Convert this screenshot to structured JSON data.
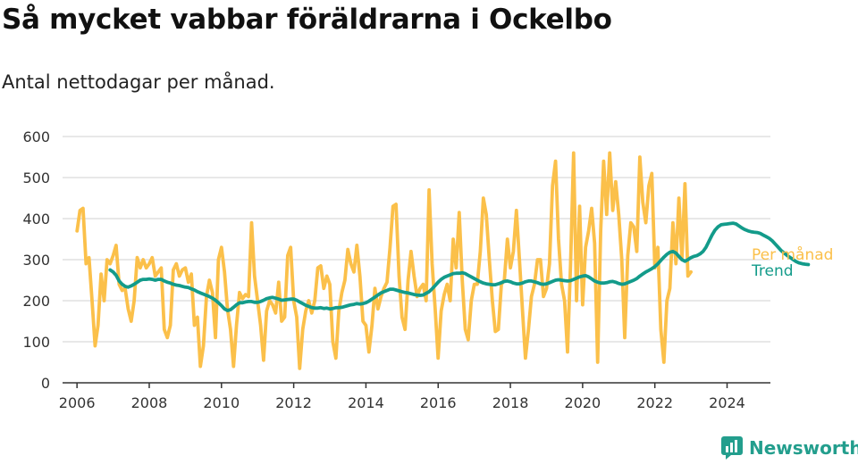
{
  "title": "Så mycket vabbar föräldrarna i Ockelbo",
  "subtitle": "Antal nettodagar per månad.",
  "brand": "Newsworthy",
  "colors": {
    "monthly": "#fbc04a",
    "trend": "#139b8a",
    "grid": "#d9d9d9",
    "axis": "#333333",
    "brand": "#239e8d"
  },
  "chart_data": {
    "type": "line",
    "title": "Så mycket vabbar föräldrarna i Ockelbo",
    "subtitle": "Antal nettodagar per månad.",
    "xlabel": "",
    "ylabel": "",
    "xlim": [
      2005.6,
      2025.2
    ],
    "ylim": [
      0,
      600
    ],
    "grid": true,
    "legend": "inline-right",
    "x_ticks": [
      "2006",
      "2008",
      "2010",
      "2012",
      "2014",
      "2016",
      "2018",
      "2020",
      "2022",
      "2024"
    ],
    "y_ticks": [
      "0",
      "100",
      "200",
      "300",
      "400",
      "500",
      "600"
    ],
    "series": [
      {
        "name": "Per månad",
        "x_start": "2006-01",
        "step": "month",
        "values": [
          370,
          420,
          425,
          290,
          305,
          200,
          90,
          140,
          265,
          200,
          300,
          290,
          310,
          335,
          240,
          225,
          230,
          180,
          150,
          200,
          305,
          280,
          300,
          280,
          290,
          305,
          260,
          270,
          280,
          130,
          110,
          140,
          275,
          290,
          260,
          275,
          280,
          245,
          265,
          140,
          160,
          40,
          90,
          210,
          250,
          220,
          110,
          300,
          330,
          270,
          180,
          130,
          40,
          140,
          220,
          205,
          215,
          210,
          390,
          260,
          200,
          140,
          55,
          175,
          200,
          190,
          170,
          245,
          150,
          160,
          310,
          330,
          200,
          160,
          35,
          130,
          175,
          200,
          170,
          200,
          280,
          285,
          230,
          260,
          240,
          100,
          60,
          175,
          220,
          250,
          325,
          290,
          270,
          335,
          260,
          150,
          140,
          75,
          140,
          230,
          180,
          210,
          230,
          245,
          330,
          430,
          435,
          260,
          160,
          130,
          250,
          320,
          260,
          210,
          230,
          240,
          200,
          470,
          290,
          180,
          60,
          175,
          215,
          240,
          200,
          350,
          280,
          415,
          250,
          130,
          105,
          200,
          240,
          240,
          320,
          450,
          410,
          300,
          200,
          125,
          130,
          240,
          250,
          350,
          280,
          320,
          420,
          300,
          180,
          60,
          130,
          210,
          240,
          300,
          300,
          210,
          230,
          290,
          480,
          540,
          350,
          240,
          200,
          75,
          290,
          560,
          200,
          430,
          190,
          330,
          370,
          425,
          340,
          50,
          370,
          540,
          410,
          560,
          420,
          490,
          410,
          300,
          110,
          310,
          390,
          380,
          320,
          550,
          440,
          390,
          480,
          510,
          280,
          330,
          130,
          50,
          200,
          230,
          390,
          290,
          450,
          300,
          485,
          260,
          270
        ]
      },
      {
        "name": "Trend",
        "x_start": "2006-12",
        "step": "month",
        "values": [
          275,
          270,
          262,
          248,
          240,
          235,
          233,
          236,
          240,
          245,
          250,
          252,
          252,
          253,
          252,
          250,
          252,
          252,
          248,
          245,
          243,
          240,
          238,
          237,
          235,
          233,
          232,
          229,
          226,
          222,
          219,
          216,
          213,
          210,
          206,
          201,
          195,
          188,
          180,
          176,
          178,
          184,
          190,
          195,
          195,
          197,
          198,
          198,
          196,
          196,
          198,
          201,
          205,
          207,
          208,
          206,
          204,
          201,
          202,
          203,
          204,
          204,
          201,
          197,
          193,
          189,
          186,
          183,
          182,
          182,
          183,
          181,
          182,
          180,
          181,
          183,
          183,
          184,
          186,
          188,
          190,
          191,
          193,
          192,
          193,
          195,
          199,
          204,
          209,
          214,
          219,
          222,
          225,
          228,
          228,
          226,
          224,
          222,
          220,
          219,
          217,
          215,
          214,
          213,
          214,
          218,
          222,
          229,
          237,
          245,
          252,
          257,
          260,
          263,
          266,
          267,
          267,
          268,
          266,
          262,
          258,
          254,
          250,
          246,
          243,
          241,
          240,
          239,
          239,
          241,
          244,
          247,
          248,
          246,
          243,
          241,
          241,
          243,
          246,
          248,
          248,
          246,
          244,
          241,
          240,
          241,
          244,
          247,
          250,
          251,
          250,
          249,
          248,
          249,
          252,
          255,
          258,
          260,
          261,
          258,
          253,
          248,
          245,
          243,
          243,
          244,
          246,
          247,
          245,
          242,
          240,
          241,
          244,
          247,
          250,
          254,
          260,
          265,
          270,
          274,
          278,
          283,
          290,
          298,
          306,
          313,
          318,
          320,
          316,
          308,
          300,
          296,
          300,
          305,
          308,
          310,
          314,
          320,
          330,
          345,
          360,
          372,
          380,
          385,
          386,
          387,
          388,
          389,
          387,
          382,
          377,
          373,
          370,
          368,
          367,
          366,
          364,
          360,
          356,
          352,
          346,
          338,
          330,
          322,
          316,
          310,
          305,
          300,
          295,
          292,
          290,
          289,
          288
        ]
      }
    ]
  }
}
